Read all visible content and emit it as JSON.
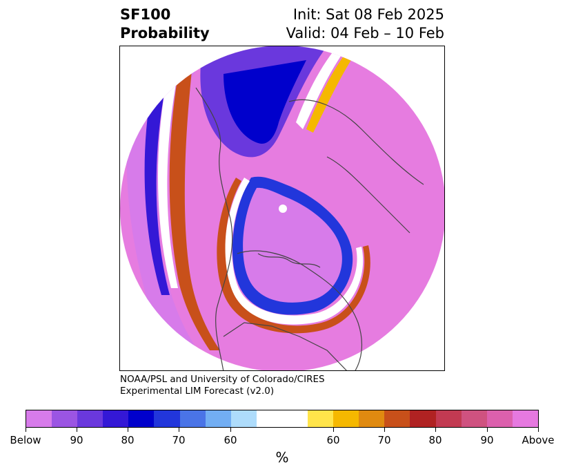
{
  "title": {
    "left_line1": "SF100",
    "left_line2": "Probability",
    "right_line1": "Init: Sat 08 Feb 2025",
    "right_line2": "Valid: 04 Feb – 10 Feb"
  },
  "credit": {
    "line1": "NOAA/PSL and University of Colorado/CIRES",
    "line2": "Experimental LIM Forecast (v2.0)"
  },
  "colorbar": {
    "colors": [
      "#d77bea",
      "#9b55e3",
      "#6a38dd",
      "#3418d6",
      "#0000cc",
      "#2236db",
      "#4a74e7",
      "#72aef3",
      "#aedcfb",
      "#ffffff",
      "#ffe44a",
      "#f5b800",
      "#e08a10",
      "#c8501a",
      "#b02222",
      "#c23a52",
      "#cf5280",
      "#dc60ad",
      "#e679e0"
    ],
    "tick_labels": [
      "Below",
      "90",
      "80",
      "70",
      "60",
      "60",
      "70",
      "80",
      "90",
      "Above"
    ],
    "unit": "%"
  },
  "map": {
    "projection": "north-polar-stereographic",
    "below_color": "#d77bea",
    "above_color": "#e679e0",
    "coastline_color": "#444444"
  }
}
